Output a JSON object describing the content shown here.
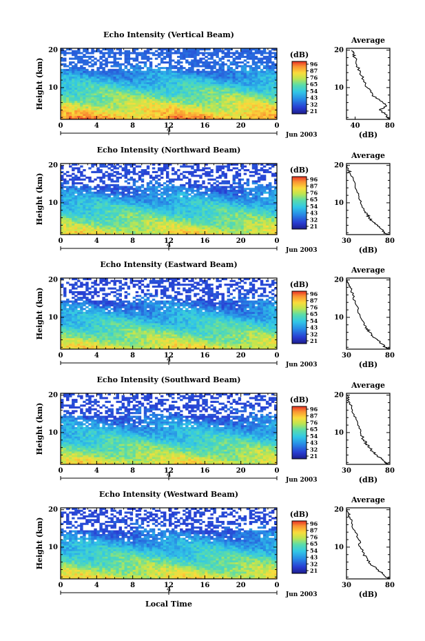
{
  "figure": {
    "date_label": "Jun 2003",
    "xlabel": "Local Time",
    "ylabel": "Height (km)",
    "colorbar_label": "(dB)",
    "colorbar_ticks": [
      "96",
      "87",
      "76",
      "65",
      "54",
      "43",
      "32",
      "21"
    ],
    "x_ticks": [
      "0",
      "4",
      "8",
      "12",
      "16",
      "20",
      "0"
    ],
    "y_ticks": [
      "10",
      "20"
    ],
    "day_marker": "4",
    "avg_title": "Average",
    "avg_xlabel": "(dB)",
    "avg_y_ticks": [
      "10",
      "20"
    ]
  },
  "chart_data": [
    {
      "type": "heatmap",
      "title": "Echo Intensity (Vertical Beam)",
      "xlabel": "Local Time",
      "ylabel": "Height (km)",
      "xlim": [
        0,
        24
      ],
      "ylim": [
        1.5,
        20.5
      ],
      "colorbar": [
        21,
        96
      ],
      "surface_dB": 92,
      "top_dB": 34,
      "lapse_dB_per_km": 3.6,
      "average_profile": {
        "xlim": [
          30,
          80
        ],
        "x_ticks": [
          "40",
          "80"
        ],
        "heights_km": [
          1.5,
          2,
          3,
          4,
          5,
          6,
          7,
          8,
          9,
          10,
          12,
          14,
          16,
          18,
          19,
          20
        ],
        "values_dB": [
          80,
          78,
          74,
          68,
          76,
          72,
          66,
          60,
          58,
          54,
          50,
          46,
          42,
          40,
          38,
          36
        ]
      }
    },
    {
      "type": "heatmap",
      "title": "Echo Intensity (Northward Beam)",
      "xlabel": "Local Time",
      "ylabel": "Height (km)",
      "xlim": [
        0,
        24
      ],
      "ylim": [
        1.5,
        20.5
      ],
      "colorbar": [
        21,
        96
      ],
      "surface_dB": 82,
      "top_dB": 30,
      "lapse_dB_per_km": 3.2,
      "average_profile": {
        "xlim": [
          30,
          80
        ],
        "x_ticks": [
          "30",
          "80"
        ],
        "heights_km": [
          1.5,
          2,
          3,
          4,
          5,
          6,
          7,
          8,
          10,
          12,
          14,
          16,
          18,
          19,
          20
        ],
        "values_dB": [
          78,
          74,
          70,
          66,
          60,
          56,
          54,
          50,
          46,
          44,
          40,
          38,
          34,
          32,
          31
        ]
      }
    },
    {
      "type": "heatmap",
      "title": "Echo Intensity (Eastward Beam)",
      "xlabel": "Local Time",
      "ylabel": "Height (km)",
      "xlim": [
        0,
        24
      ],
      "ylim": [
        1.5,
        20.5
      ],
      "colorbar": [
        21,
        96
      ],
      "surface_dB": 82,
      "top_dB": 30,
      "lapse_dB_per_km": 3.2,
      "average_profile": {
        "xlim": [
          30,
          80
        ],
        "x_ticks": [
          "30",
          "80"
        ],
        "heights_km": [
          1.5,
          2,
          3,
          4,
          5,
          6,
          7,
          8,
          10,
          12,
          14,
          16,
          18,
          19,
          20
        ],
        "values_dB": [
          79,
          75,
          70,
          66,
          60,
          57,
          54,
          50,
          46,
          43,
          40,
          37,
          34,
          32,
          31
        ]
      }
    },
    {
      "type": "heatmap",
      "title": "Echo Intensity (Southward Beam)",
      "xlabel": "Local Time",
      "ylabel": "Height (km)",
      "xlim": [
        0,
        24
      ],
      "ylim": [
        1.5,
        20.5
      ],
      "colorbar": [
        21,
        96
      ],
      "surface_dB": 82,
      "top_dB": 30,
      "lapse_dB_per_km": 3.2,
      "average_profile": {
        "xlim": [
          30,
          80
        ],
        "x_ticks": [
          "30",
          "80"
        ],
        "heights_km": [
          1.5,
          2,
          3,
          4,
          5,
          6,
          7,
          8,
          10,
          12,
          14,
          16,
          18,
          19,
          20
        ],
        "values_dB": [
          78,
          74,
          70,
          65,
          60,
          56,
          53,
          50,
          46,
          43,
          41,
          37,
          34,
          32,
          31
        ]
      }
    },
    {
      "type": "heatmap",
      "title": "Echo Intensity (Westward Beam)",
      "xlabel": "Local Time",
      "ylabel": "Height (km)",
      "xlim": [
        0,
        24
      ],
      "ylim": [
        1.5,
        20.5
      ],
      "colorbar": [
        21,
        96
      ],
      "surface_dB": 82,
      "top_dB": 30,
      "lapse_dB_per_km": 3.2,
      "average_profile": {
        "xlim": [
          30,
          80
        ],
        "x_ticks": [
          "30",
          "80"
        ],
        "heights_km": [
          1.5,
          2,
          3,
          4,
          5,
          6,
          7,
          8,
          10,
          12,
          14,
          16,
          18,
          19,
          20
        ],
        "values_dB": [
          79,
          75,
          71,
          66,
          60,
          56,
          54,
          50,
          46,
          44,
          40,
          37,
          34,
          32,
          31
        ]
      }
    }
  ]
}
